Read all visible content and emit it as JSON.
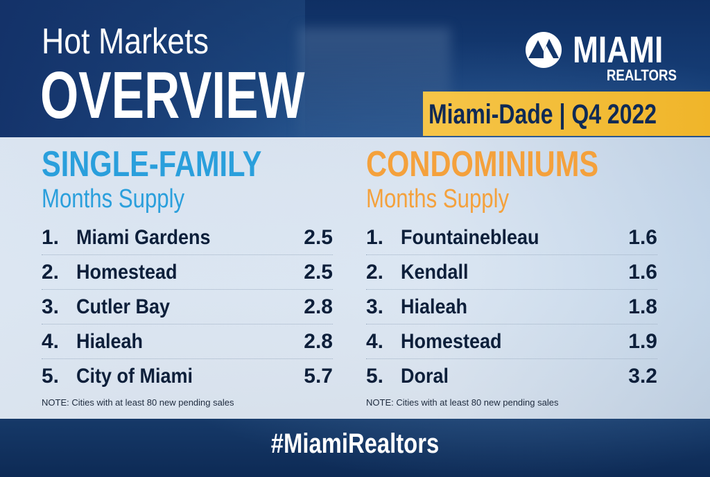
{
  "header": {
    "title_line1": "Hot Markets",
    "title_line2": "OVERVIEW"
  },
  "logo": {
    "word": "MIAMI",
    "sub": "REALTORS"
  },
  "region": "Miami-Dade | Q4 2022",
  "single_family": {
    "title": "SINGLE-FAMILY",
    "subtitle": "Months Supply",
    "items": [
      {
        "rank": "1.",
        "name": "Miami Gardens",
        "value": "2.5"
      },
      {
        "rank": "2.",
        "name": "Homestead",
        "value": "2.5"
      },
      {
        "rank": "3.",
        "name": "Cutler Bay",
        "value": "2.8"
      },
      {
        "rank": "4.",
        "name": "Hialeah",
        "value": "2.8"
      },
      {
        "rank": "5.",
        "name": "City of Miami",
        "value": "5.7"
      }
    ],
    "note": "NOTE: Cities with at least 80 new pending sales"
  },
  "condominiums": {
    "title": "CONDOMINIUMS",
    "subtitle": "Months Supply",
    "items": [
      {
        "rank": "1.",
        "name": "Fountainebleau",
        "value": "1.6"
      },
      {
        "rank": "2.",
        "name": "Kendall",
        "value": "1.6"
      },
      {
        "rank": "3.",
        "name": "Hialeah",
        "value": "1.8"
      },
      {
        "rank": "4.",
        "name": "Homestead",
        "value": "1.9"
      },
      {
        "rank": "5.",
        "name": "Doral",
        "value": "3.2"
      }
    ],
    "note": "NOTE: Cities with at least 80 new pending sales"
  },
  "hashtag": "#MiamiRealtors",
  "colors": {
    "single_family_accent": "#2a9fdc",
    "condo_accent": "#f4a13c",
    "region_band": "#f0b52a",
    "background_blue": "#13366b"
  }
}
